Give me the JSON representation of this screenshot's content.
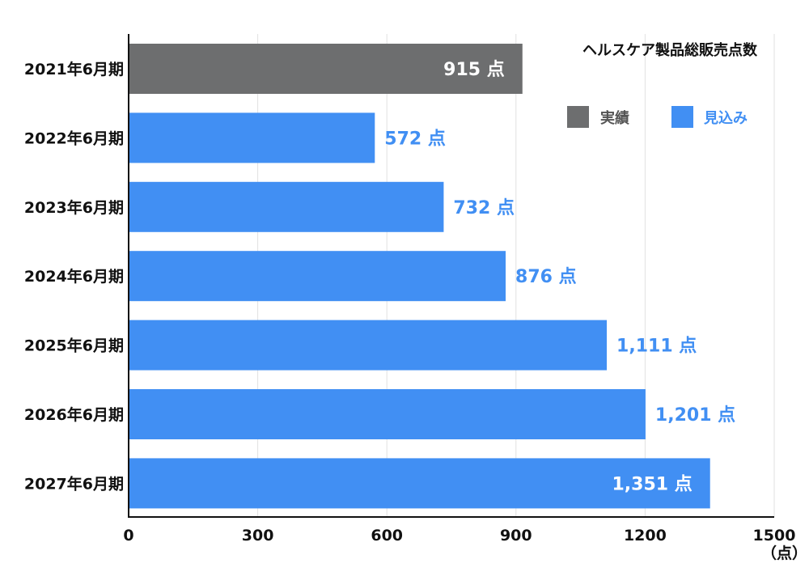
{
  "chart_data": {
    "type": "bar",
    "orientation": "horizontal",
    "title": "ヘルスケア製品総販売点数",
    "categories": [
      "2021年6月期",
      "2022年6月期",
      "2023年6月期",
      "2024年6月期",
      "2025年6月期",
      "2026年6月期",
      "2027年6月期"
    ],
    "values": [
      915,
      572,
      732,
      876,
      1111,
      1201,
      1351
    ],
    "value_labels": [
      "915 点",
      "572 点",
      "732 点",
      "876 点",
      "1,111 点",
      "1,201 点",
      "1,351 点"
    ],
    "bar_series": [
      "actual",
      "forecast",
      "forecast",
      "forecast",
      "forecast",
      "forecast",
      "forecast"
    ],
    "label_inside": [
      true,
      false,
      false,
      false,
      false,
      false,
      true
    ],
    "xlim": [
      0,
      1500
    ],
    "x_ticks": [
      0,
      300,
      600,
      900,
      1200,
      1500
    ],
    "x_unit": "（点）",
    "grid": true,
    "legend_position": "top-right",
    "legend": [
      {
        "key": "actual",
        "label": "実績",
        "color": "#6d6e6f",
        "text_color": "#555555"
      },
      {
        "key": "forecast",
        "label": "見込み",
        "color": "#418ff3",
        "text_color": "#418ff3"
      }
    ],
    "colors": {
      "actual": "#6d6e6f",
      "forecast": "#418ff3",
      "label_outside": "#418ff3",
      "label_inside": "#ffffff"
    }
  }
}
